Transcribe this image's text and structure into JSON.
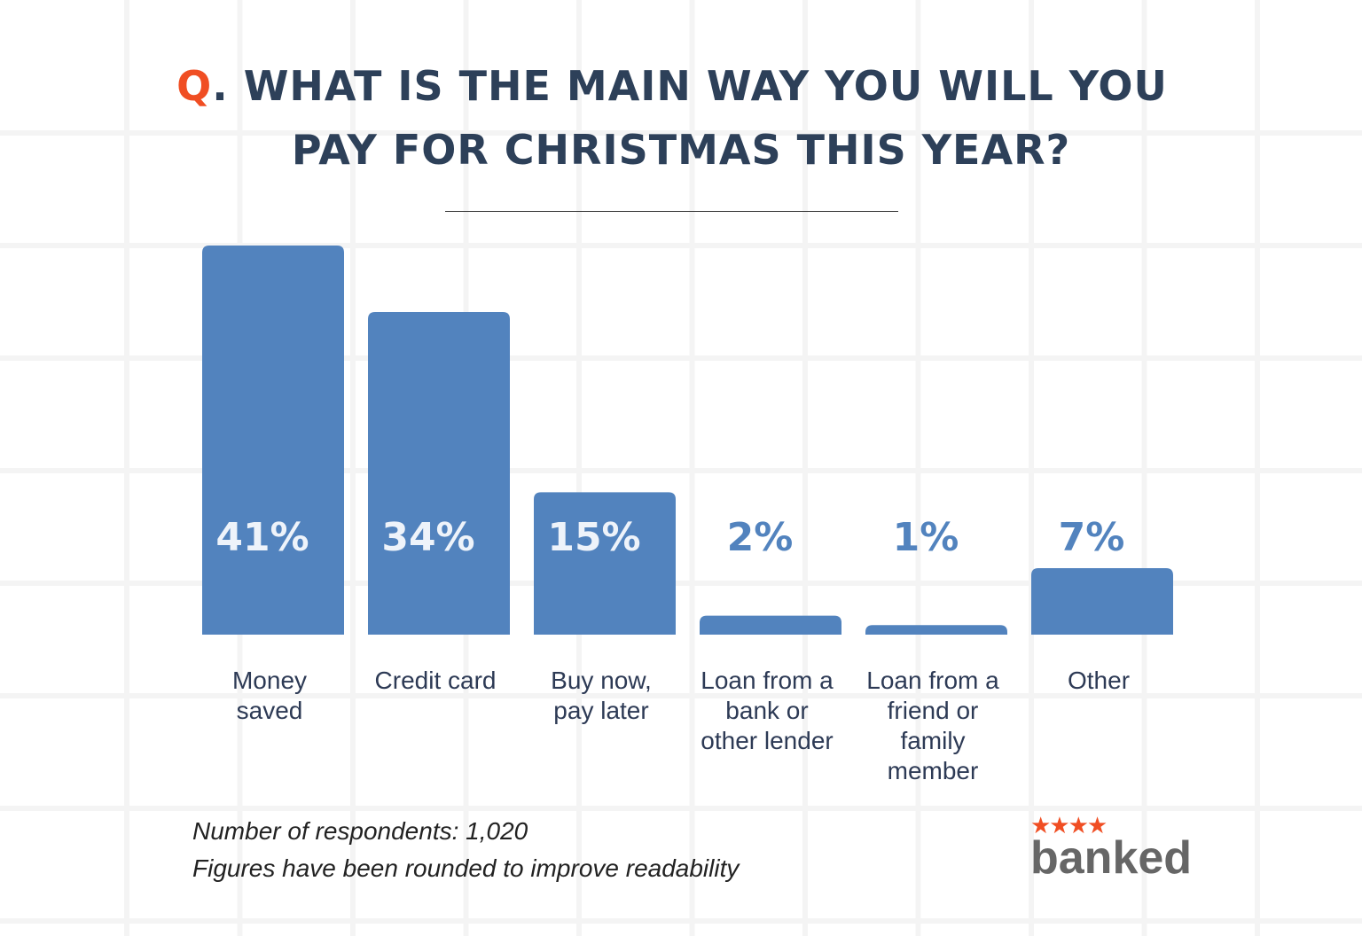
{
  "title": {
    "prefix": "Q",
    "line1": ". WHAT IS THE MAIN WAY YOU WILL YOU",
    "line2": "PAY FOR CHRISTMAS THIS YEAR?"
  },
  "chart_data": {
    "type": "bar",
    "title": "Q. WHAT IS THE MAIN WAY YOU WILL YOU PAY FOR CHRISTMAS THIS YEAR?",
    "categories": [
      [
        "Money",
        "saved"
      ],
      [
        "Credit card"
      ],
      [
        "Buy now,",
        "pay later"
      ],
      [
        "Loan from a",
        "bank or",
        "other lender"
      ],
      [
        "Loan from a",
        "friend or",
        "family",
        "member"
      ],
      [
        "Other"
      ]
    ],
    "values": [
      41,
      34,
      15,
      2,
      1,
      7
    ],
    "data_labels": [
      "41%",
      "34%",
      "15%",
      "2%",
      "1%",
      "7%"
    ],
    "unit": "%",
    "ylim": [
      0,
      41
    ],
    "grid": false,
    "bar_color": "#5283be"
  },
  "footer": {
    "respondents": "Number of respondents: 1,020",
    "note": "Figures have been rounded to improve readability"
  },
  "logo": {
    "stars": "★★★★",
    "text": "banked"
  },
  "colors": {
    "accent": "#f04e23",
    "title": "#2d4059",
    "bar": "#5283be",
    "label": "#2d3a55"
  }
}
